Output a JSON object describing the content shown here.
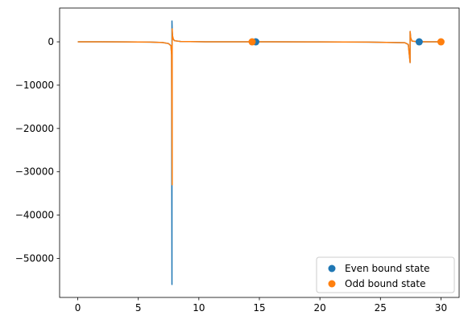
{
  "chart_data": {
    "type": "line",
    "title": "",
    "xlabel": "",
    "ylabel": "",
    "xlim": [
      -1.5,
      31.5
    ],
    "ylim": [
      -59000,
      7800
    ],
    "xticks": [
      0,
      5,
      10,
      15,
      20,
      25,
      30
    ],
    "yticks": [
      0,
      -10000,
      -20000,
      -30000,
      -40000,
      -50000
    ],
    "grid": false,
    "legend_position": "lower-right",
    "colors": {
      "even": "#1f77b4",
      "odd": "#ff7f0e"
    },
    "series": [
      {
        "key": "even_line",
        "type": "line",
        "color": "#1f77b4",
        "x": [
          0,
          2,
          4,
          6,
          7.0,
          7.5,
          7.7,
          7.75,
          7.78,
          7.78,
          7.8,
          7.85,
          8.0,
          8.5,
          10,
          12,
          14,
          14.5,
          14.7,
          16,
          20,
          24,
          27.0,
          27.3,
          27.45,
          27.45,
          27.5,
          27.6,
          28,
          28.2,
          29,
          30
        ],
        "y": [
          0,
          -5,
          -15,
          -60,
          -150,
          -400,
          -900,
          -3000,
          -56000,
          4800,
          2500,
          700,
          250,
          80,
          20,
          10,
          5,
          0,
          0,
          -5,
          -15,
          -60,
          -200,
          -600,
          -4800,
          2400,
          900,
          200,
          20,
          0,
          5,
          0
        ]
      },
      {
        "key": "odd_line",
        "type": "line",
        "color": "#ff7f0e",
        "x": [
          0,
          2,
          4,
          6,
          7.0,
          7.5,
          7.7,
          7.75,
          7.8,
          7.8,
          7.82,
          7.9,
          8.0,
          8.5,
          10,
          12,
          14,
          14.4,
          14.6,
          16,
          20,
          24,
          27.0,
          27.3,
          27.45,
          27.45,
          27.5,
          27.6,
          28,
          29,
          30
        ],
        "y": [
          0,
          -5,
          -15,
          -60,
          -150,
          -400,
          -900,
          -3000,
          -33000,
          3000,
          1500,
          600,
          250,
          80,
          20,
          10,
          5,
          0,
          0,
          -5,
          -15,
          -60,
          -200,
          -600,
          -4800,
          2400,
          900,
          200,
          20,
          5,
          0
        ]
      },
      {
        "name": "Even bound state",
        "key": "even_points",
        "type": "scatter",
        "color": "#1f77b4",
        "x": [
          14.7,
          28.2
        ],
        "y": [
          0,
          0
        ]
      },
      {
        "name": "Odd bound state",
        "key": "odd_points",
        "type": "scatter",
        "color": "#ff7f0e",
        "x": [
          14.4,
          30.0
        ],
        "y": [
          0,
          0
        ]
      }
    ]
  }
}
